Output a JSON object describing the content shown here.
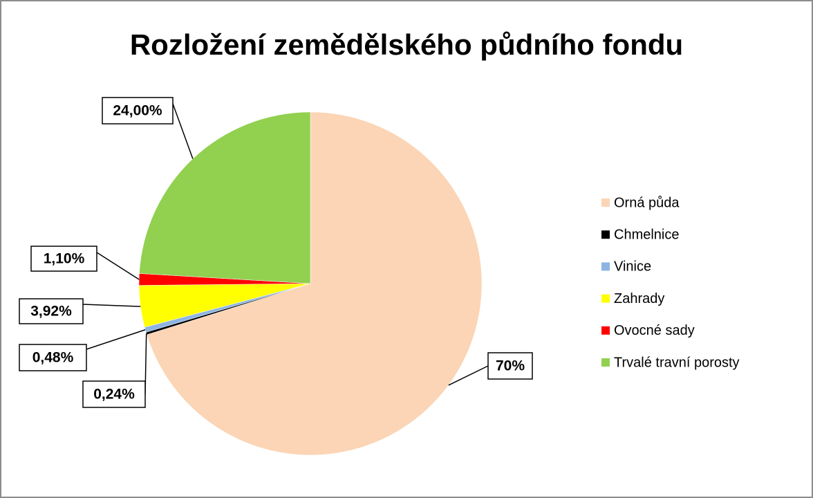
{
  "chart_data": {
    "type": "pie",
    "title": "Rozložení zemědělského půdního fondu",
    "categories": [
      "Orná půda",
      "Chmelnice",
      "Vinice",
      "Zahrady",
      "Ovocné sady",
      "Trvalé travní porosty"
    ],
    "values": [
      70,
      0.24,
      0.48,
      3.92,
      1.1,
      24.0
    ],
    "value_labels": [
      "70%",
      "0,24%",
      "0,48%",
      "3,92%",
      "1,10%",
      "24,00%"
    ],
    "colors": [
      "#fbd5b5",
      "#000000",
      "#8db4e2",
      "#ffff00",
      "#ff0000",
      "#92d050"
    ],
    "legend": "right"
  }
}
